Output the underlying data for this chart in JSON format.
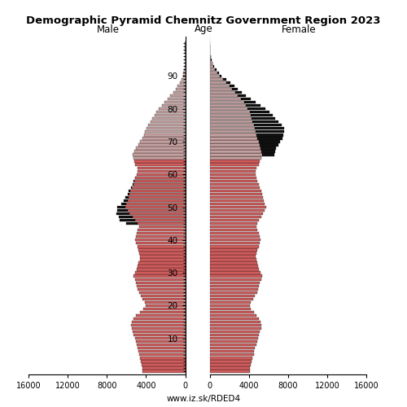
{
  "title": "Demographic Pyramid Chemnitz Government Region 2023",
  "label_male": "Male",
  "label_female": "Female",
  "label_age": "Age",
  "footer": "www.iz.sk/RDED4",
  "xlim": 16000,
  "bar_color_young": "#cd5c5c",
  "bar_color_old": "#c4a0a0",
  "bar_color_black": "#111111",
  "age_cutoff_color": 65,
  "ages": [
    0,
    1,
    2,
    3,
    4,
    5,
    6,
    7,
    8,
    9,
    10,
    11,
    12,
    13,
    14,
    15,
    16,
    17,
    18,
    19,
    20,
    21,
    22,
    23,
    24,
    25,
    26,
    27,
    28,
    29,
    30,
    31,
    32,
    33,
    34,
    35,
    36,
    37,
    38,
    39,
    40,
    41,
    42,
    43,
    44,
    45,
    46,
    47,
    48,
    49,
    50,
    51,
    52,
    53,
    54,
    55,
    56,
    57,
    58,
    59,
    60,
    61,
    62,
    63,
    64,
    65,
    66,
    67,
    68,
    69,
    70,
    71,
    72,
    73,
    74,
    75,
    76,
    77,
    78,
    79,
    80,
    81,
    82,
    83,
    84,
    85,
    86,
    87,
    88,
    89,
    90,
    91,
    92,
    93,
    94,
    95,
    96,
    97,
    98,
    99,
    100
  ],
  "male": [
    4400,
    4350,
    4450,
    4500,
    4600,
    4700,
    4750,
    4850,
    4950,
    5050,
    5150,
    5250,
    5350,
    5450,
    5500,
    5450,
    5300,
    5050,
    4650,
    4250,
    4050,
    4100,
    4350,
    4550,
    4700,
    4850,
    4950,
    5050,
    5150,
    5250,
    5100,
    4950,
    4850,
    4750,
    4650,
    4600,
    4700,
    4800,
    4900,
    5000,
    5150,
    5050,
    4950,
    4850,
    4700,
    4850,
    5150,
    5400,
    5700,
    5900,
    6100,
    6000,
    5900,
    5800,
    5700,
    5600,
    5450,
    5300,
    5200,
    5100,
    4950,
    4850,
    4900,
    5100,
    5200,
    5300,
    5400,
    5200,
    5000,
    4800,
    4600,
    4400,
    4200,
    4100,
    3950,
    3750,
    3550,
    3350,
    3150,
    2950,
    2700,
    2400,
    2100,
    1800,
    1500,
    1200,
    950,
    750,
    550,
    380,
    230,
    170,
    110,
    70,
    45,
    28,
    18,
    8,
    4,
    2,
    1
  ],
  "female": [
    4100,
    4150,
    4200,
    4300,
    4400,
    4500,
    4550,
    4650,
    4750,
    4850,
    4950,
    5050,
    5150,
    5250,
    5300,
    5200,
    5000,
    4800,
    4500,
    4200,
    4100,
    4200,
    4450,
    4650,
    4850,
    4950,
    5050,
    5150,
    5250,
    5350,
    5200,
    5050,
    4950,
    4850,
    4750,
    4700,
    4800,
    4900,
    5000,
    5100,
    5200,
    5100,
    5000,
    4900,
    4750,
    4850,
    5050,
    5250,
    5450,
    5600,
    5750,
    5650,
    5550,
    5450,
    5350,
    5250,
    5100,
    5000,
    4900,
    4800,
    4700,
    4700,
    4800,
    5000,
    5100,
    5250,
    5400,
    5300,
    5200,
    5100,
    5000,
    4900,
    4800,
    4700,
    4600,
    4550,
    4400,
    4300,
    4200,
    4100,
    3900,
    3700,
    3500,
    3200,
    2900,
    2600,
    2300,
    2000,
    1700,
    1400,
    1000,
    780,
    580,
    380,
    260,
    160,
    95,
    55,
    28,
    13,
    4
  ],
  "male_black": [
    0,
    0,
    0,
    0,
    0,
    0,
    0,
    0,
    0,
    0,
    0,
    0,
    0,
    0,
    0,
    0,
    0,
    0,
    0,
    0,
    0,
    0,
    0,
    0,
    0,
    0,
    0,
    0,
    0,
    0,
    0,
    0,
    0,
    0,
    0,
    0,
    0,
    0,
    0,
    0,
    0,
    0,
    0,
    0,
    0,
    1200,
    1500,
    1400,
    1300,
    1000,
    800,
    500,
    400,
    300,
    200,
    150,
    100,
    80,
    60,
    40,
    0,
    0,
    0,
    0,
    0,
    0,
    0,
    0,
    0,
    0,
    0,
    0,
    0,
    0,
    0,
    0,
    0,
    0,
    0,
    0,
    0,
    0,
    0,
    0,
    0,
    0,
    0,
    0,
    0,
    0,
    0,
    0,
    0,
    0,
    0,
    0,
    0,
    0,
    0,
    0,
    0
  ],
  "female_black": [
    0,
    0,
    0,
    0,
    0,
    0,
    0,
    0,
    0,
    0,
    0,
    0,
    0,
    0,
    0,
    0,
    0,
    0,
    0,
    0,
    0,
    0,
    0,
    0,
    0,
    0,
    0,
    0,
    0,
    0,
    0,
    0,
    0,
    0,
    0,
    0,
    0,
    0,
    0,
    0,
    0,
    0,
    0,
    0,
    0,
    0,
    0,
    0,
    0,
    0,
    0,
    0,
    0,
    0,
    0,
    0,
    0,
    0,
    0,
    0,
    0,
    0,
    0,
    0,
    0,
    0,
    1200,
    1400,
    1600,
    1900,
    2200,
    2500,
    2700,
    2900,
    3000,
    2800,
    2600,
    2400,
    2200,
    2000,
    1800,
    1500,
    1200,
    1000,
    800,
    700,
    600,
    500,
    400,
    300,
    200,
    150,
    100,
    60,
    30,
    15,
    10,
    5,
    3,
    1
  ]
}
